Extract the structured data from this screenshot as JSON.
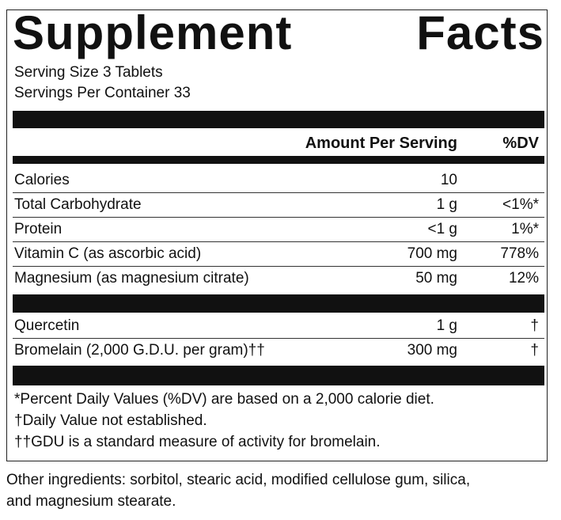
{
  "title": "Supplement Facts",
  "serving_size": "Serving Size 3 Tablets",
  "servings_per_container": "Servings Per Container 33",
  "header": {
    "amount": "Amount Per Serving",
    "dv": "%DV"
  },
  "rows": [
    [
      "Calories",
      "10",
      ""
    ],
    [
      "Total Carbohydrate",
      "1 g",
      "<1%*"
    ],
    [
      "Protein",
      "<1 g",
      "1%*"
    ],
    [
      "Vitamin C (as ascorbic acid)",
      "700 mg",
      "778%"
    ],
    [
      "Magnesium (as magnesium citrate)",
      "50 mg",
      "12%"
    ]
  ],
  "other_rows": [
    [
      "Quercetin",
      "1 g",
      "†"
    ],
    [
      "Bromelain (2,000 G.D.U. per gram)††",
      "300 mg",
      "†"
    ]
  ],
  "footnotes": [
    "*Percent Daily Values (%DV) are based on a 2,000 calorie diet.",
    "†Daily Value not established.",
    "††GDU is a standard measure of activity for bromelain."
  ],
  "other_ingredients": [
    "Other ingredients: sorbitol, stearic acid, modified cellulose gum, silica,",
    "and magnesium stearate."
  ]
}
